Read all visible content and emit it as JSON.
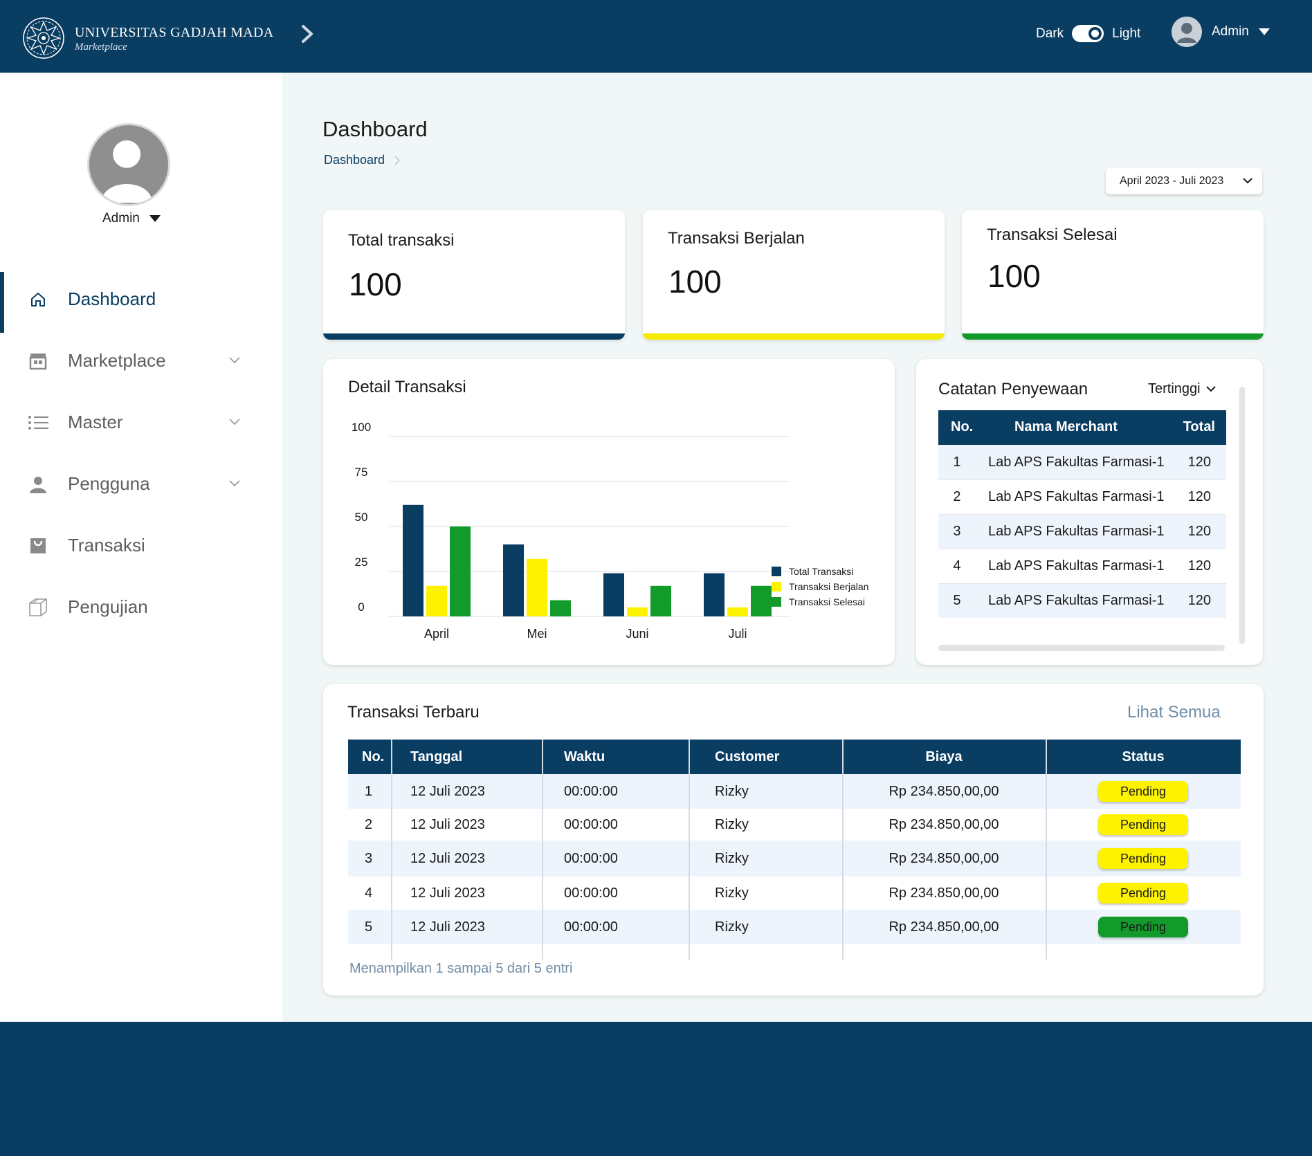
{
  "brand": {
    "title": "UNIVERSITAS GADJAH MADA",
    "subtitle": "Marketplace"
  },
  "theme": {
    "dark_label": "Dark",
    "light_label": "Light"
  },
  "user": {
    "name": "Admin"
  },
  "sidebar": {
    "user_name": "Admin",
    "items": [
      {
        "label": "Dashboard",
        "icon": "home-icon",
        "active": true
      },
      {
        "label": "Marketplace",
        "icon": "store-icon",
        "expandable": true
      },
      {
        "label": "Master",
        "icon": "list-icon",
        "expandable": true
      },
      {
        "label": "Pengguna",
        "icon": "user-icon",
        "expandable": true
      },
      {
        "label": "Transaksi",
        "icon": "shopping-bag-icon"
      },
      {
        "label": "Pengujian",
        "icon": "box-icon"
      }
    ]
  },
  "page": {
    "title": "Dashboard",
    "breadcrumb": "Dashboard",
    "date_range": "April 2023 - Juli 2023"
  },
  "stats": [
    {
      "label": "Total transaksi",
      "value": "100",
      "color": "#0a3d62"
    },
    {
      "label": "Transaksi Berjalan",
      "value": "100",
      "color": "#f5ea00"
    },
    {
      "label": "Transaksi Selesai",
      "value": "100",
      "color": "#129b2b"
    }
  ],
  "detail": {
    "title": "Detail Transaksi"
  },
  "chart_data": {
    "type": "bar",
    "categories": [
      "April",
      "Mei",
      "Juni",
      "Juli"
    ],
    "series": [
      {
        "name": "Total Transaksi",
        "color": "#0a3d62",
        "values": [
          62,
          40,
          24,
          24
        ]
      },
      {
        "name": "Transaksi Berjalan",
        "color": "#fdf200",
        "values": [
          17,
          32,
          5,
          5
        ]
      },
      {
        "name": "Transaksi Selesai",
        "color": "#129b2b",
        "values": [
          50,
          9,
          17,
          17
        ]
      }
    ],
    "yticks": [
      0,
      25,
      50,
      75,
      100
    ],
    "ylim": [
      0,
      100
    ],
    "grid": true,
    "legend": "right"
  },
  "rent": {
    "title": "Catatan Penyewaan",
    "sort": "Tertinggi",
    "headers": [
      "No.",
      "Nama Merchant",
      "Total"
    ],
    "rows": [
      [
        "1",
        "Lab APS Fakultas Farmasi-1",
        "120"
      ],
      [
        "2",
        "Lab APS Fakultas Farmasi-1",
        "120"
      ],
      [
        "3",
        "Lab APS Fakultas Farmasi-1",
        "120"
      ],
      [
        "4",
        "Lab APS Fakultas Farmasi-1",
        "120"
      ],
      [
        "5",
        "Lab APS Fakultas Farmasi-1",
        "120"
      ]
    ]
  },
  "recent": {
    "title": "Transaksi Terbaru",
    "see_all": "Lihat Semua",
    "headers": [
      "No.",
      "Tanggal",
      "Waktu",
      "Customer",
      "Biaya",
      "Status"
    ],
    "rows": [
      [
        "1",
        "12 Juli 2023",
        "00:00:00",
        "Rizky",
        "Rp 234.850,00,00",
        "Pending"
      ],
      [
        "2",
        "12 Juli 2023",
        "00:00:00",
        "Rizky",
        "Rp 234.850,00,00",
        "Pending"
      ],
      [
        "3",
        "12 Juli 2023",
        "00:00:00",
        "Rizky",
        "Rp 234.850,00,00",
        "Pending"
      ],
      [
        "4",
        "12 Juli 2023",
        "00:00:00",
        "Rizky",
        "Rp 234.850,00,00",
        "Pending"
      ],
      [
        "5",
        "12 Juli 2023",
        "00:00:00",
        "Rizky",
        "Rp 234.850,00,00",
        "Pending"
      ]
    ],
    "status_colors": [
      "#fdf200",
      "#fdf200",
      "#fdf200",
      "#fdf200",
      "#129b2b"
    ],
    "entries": "Menampilkan 1 sampai 5 dari 5 entri"
  }
}
